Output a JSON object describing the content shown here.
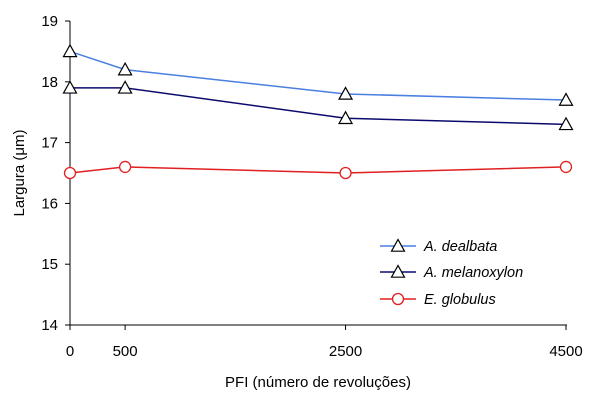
{
  "chart_data": {
    "type": "line",
    "xlabel": "PFI (número de revoluções)",
    "ylabel_main": "Largura (",
    "ylabel_mu": "μ",
    "ylabel_end": "m)",
    "x_ticks": [
      "0",
      "500",
      "2500",
      "4500"
    ],
    "y_ticks": [
      "14",
      "15",
      "16",
      "17",
      "18",
      "19"
    ],
    "xlim": [
      0,
      4500
    ],
    "ylim": [
      14,
      19
    ],
    "grid": false,
    "legend_position": "bottom-right",
    "series": [
      {
        "name": "A. dealbata",
        "color": "#4a7fe0",
        "marker": "triangle",
        "x": [
          0,
          500,
          2500,
          4500
        ],
        "y": [
          18.5,
          18.2,
          17.8,
          17.7
        ]
      },
      {
        "name": "A. melanoxylon",
        "color": "#0a0a6e",
        "marker": "triangle",
        "x": [
          0,
          500,
          2500,
          4500
        ],
        "y": [
          17.9,
          17.9,
          17.4,
          17.3
        ]
      },
      {
        "name": "E. globulus",
        "color": "#e02020",
        "marker": "circle",
        "x": [
          0,
          500,
          2500,
          4500
        ],
        "y": [
          16.5,
          16.6,
          16.5,
          16.6
        ]
      }
    ]
  }
}
